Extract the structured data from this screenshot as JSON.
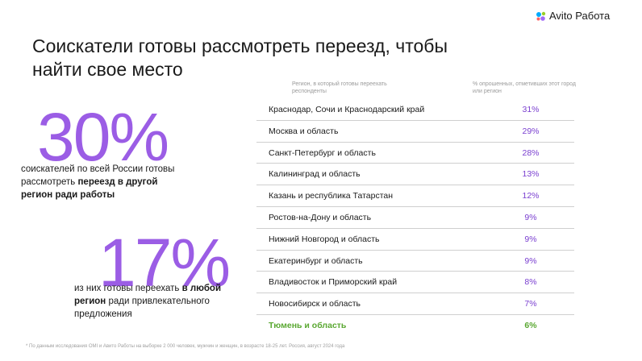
{
  "logo": "Avito Работа",
  "title": [
    "Соискатели готовы рассмотреть переезд, чтобы",
    "найти свое место"
  ],
  "stats": [
    {
      "number": "30%",
      "text": [
        {
          "t": "соискателей по всей России готовы рассмотреть ",
          "b": false
        },
        {
          "t": "переезд в другой регион ради работы",
          "b": true
        }
      ]
    },
    {
      "number": "17%",
      "text": [
        {
          "t": "из них готовы переехать ",
          "b": false
        },
        {
          "t": "в любой регион",
          "b": true
        },
        {
          "t": " ради привлекательного предложения",
          "b": false
        }
      ]
    }
  ],
  "table": {
    "header": [
      "Регион, в который готовы переехать респонденты",
      "% опрошенных, отметивших этот город или регион"
    ],
    "rows": [
      [
        "Краснодар, Сочи и Краснодарский край",
        "31%"
      ],
      [
        "Москва и область",
        "29%"
      ],
      [
        "Санкт-Петербург и область",
        "28%"
      ],
      [
        "Калининград и область",
        "13%"
      ],
      [
        "Казань и республика Татарстан",
        "12%"
      ],
      [
        "Ростов-на-Дону и область",
        "9%"
      ],
      [
        "Нижний Новгород и область",
        "9%"
      ],
      [
        "Екатеринбург и область",
        "9%"
      ],
      [
        "Владивосток и Приморский край",
        "8%"
      ],
      [
        "Новосибирск и область",
        "7%"
      ],
      [
        "Тюмень и область",
        "6%"
      ]
    ]
  },
  "footnote": "* По данным исследования OMI и Авито Работы на выборке 2 000 человек, мужчин и женщин, в возрасте 18-25 лет. Россия, август 2024 года"
}
